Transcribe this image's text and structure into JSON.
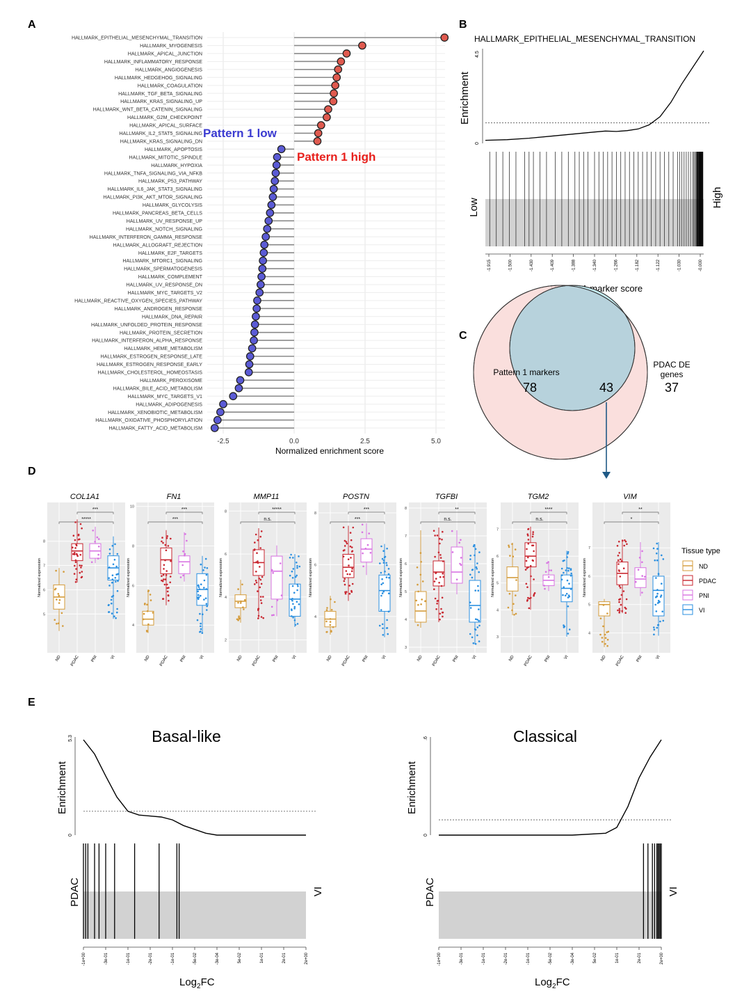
{
  "panel_labels": {
    "a": "A",
    "b": "B",
    "c": "C",
    "d": "D",
    "e": "E"
  },
  "chart_data": [
    {
      "id": "A",
      "type": "lollipop",
      "xlabel": "Normalized enrichment score",
      "xticks": [
        -2.5,
        0.0,
        2.5,
        5.0
      ],
      "xtick_labels": [
        "-2.5",
        "0.0",
        "2.5",
        "5.0"
      ],
      "xlim": [
        -2.75,
        5.4
      ],
      "colors": {
        "positive": "#e05a4f",
        "negative": "#5b5bd6"
      },
      "annotations": [
        {
          "text": "Pattern 1 low",
          "color": "#3b3bd1"
        },
        {
          "text": "Pattern 1 high",
          "color": "#e8201c"
        }
      ],
      "categories": [
        "HALLMARK_EPITHELIAL_MESENCHYMAL_TRANSITION",
        "HALLMARK_MYOGENESIS",
        "HALLMARK_APICAL_JUNCTION",
        "HALLMARK_INFLAMMATORY_RESPONSE",
        "HALLMARK_ANGIOGENESIS",
        "HALLMARK_HEDGEHOG_SIGNALING",
        "HALLMARK_COAGULATION",
        "HALLMARK_TGF_BETA_SIGNALING",
        "HALLMARK_KRAS_SIGNALING_UP",
        "HALLMARK_WNT_BETA_CATENIN_SIGNALING",
        "HALLMARK_G2M_CHECKPOINT",
        "HALLMARK_APICAL_SURFACE",
        "HALLMARK_IL2_STAT5_SIGNALING",
        "HALLMARK_KRAS_SIGNALING_DN",
        "HALLMARK_APOPTOSIS",
        "HALLMARK_MITOTIC_SPINDLE",
        "HALLMARK_HYPOXIA",
        "HALLMARK_TNFA_SIGNALING_VIA_NFKB",
        "HALLMARK_P53_PATHWAY",
        "HALLMARK_IL6_JAK_STAT3_SIGNALING",
        "HALLMARK_PI3K_AKT_MTOR_SIGNALING",
        "HALLMARK_GLYCOLYSIS",
        "HALLMARK_PANCREAS_BETA_CELLS",
        "HALLMARK_UV_RESPONSE_UP",
        "HALLMARK_NOTCH_SIGNALING",
        "HALLMARK_INTERFERON_GAMMA_RESPONSE",
        "HALLMARK_ALLOGRAFT_REJECTION",
        "HALLMARK_E2F_TARGETS",
        "HALLMARK_MTORC1_SIGNALING",
        "HALLMARK_SPERMATOGENESIS",
        "HALLMARK_COMPLEMENT",
        "HALLMARK_UV_RESPONSE_DN",
        "HALLMARK_MYC_TARGETS_V2",
        "HALLMARK_REACTIVE_OXYGEN_SPECIES_PATHWAY",
        "HALLMARK_ANDROGEN_RESPONSE",
        "HALLMARK_DNA_REPAIR",
        "HALLMARK_UNFOLDED_PROTEIN_RESPONSE",
        "HALLMARK_PROTEIN_SECRETION",
        "HALLMARK_INTERFERON_ALPHA_RESPONSE",
        "HALLMARK_HEME_METABOLISM",
        "HALLMARK_ESTROGEN_RESPONSE_LATE",
        "HALLMARK_ESTROGEN_RESPONSE_EARLY",
        "HALLMARK_CHOLESTEROL_HOMEOSTASIS",
        "HALLMARK_PEROXISOME",
        "HALLMARK_BILE_ACID_METABOLISM",
        "HALLMARK_MYC_TARGETS_V1",
        "HALLMARK_ADIPOGENESIS",
        "HALLMARK_XENOBIOTIC_METABOLISM",
        "HALLMARK_OXIDATIVE_PHOSPHORYLATION",
        "HALLMARK_FATTY_ACID_METABOLISM"
      ],
      "values": [
        5.3,
        2.4,
        1.85,
        1.65,
        1.55,
        1.5,
        1.45,
        1.4,
        1.38,
        1.2,
        1.15,
        0.95,
        0.85,
        0.82,
        -0.45,
        -0.6,
        -0.62,
        -0.65,
        -0.68,
        -0.72,
        -0.75,
        -0.8,
        -0.85,
        -0.9,
        -0.95,
        -1.0,
        -1.05,
        -1.07,
        -1.1,
        -1.12,
        -1.15,
        -1.18,
        -1.22,
        -1.3,
        -1.32,
        -1.35,
        -1.38,
        -1.4,
        -1.42,
        -1.48,
        -1.55,
        -1.58,
        -1.6,
        -1.9,
        -1.95,
        -2.15,
        -2.5,
        -2.6,
        -2.7,
        -2.8
      ]
    },
    {
      "id": "B",
      "type": "gsea_running_enrichment",
      "title": "HALLMARK_EPITHELIAL_MESENCHYMAL_TRANSITION",
      "ylabel": "Enrichment",
      "ytick_labels": [
        "0",
        "4.5"
      ],
      "ylim": [
        0,
        4.5
      ],
      "baseline": 1.0,
      "curve_x": [
        0,
        0.1,
        0.2,
        0.3,
        0.4,
        0.5,
        0.55,
        0.6,
        0.65,
        0.7,
        0.75,
        0.8,
        0.85,
        0.9,
        0.95,
        1.0
      ],
      "curve_y": [
        0.15,
        0.18,
        0.25,
        0.35,
        0.45,
        0.55,
        0.6,
        0.58,
        0.62,
        0.7,
        0.9,
        1.3,
        2.0,
        2.9,
        3.7,
        4.5
      ],
      "hits_x": [
        0.02,
        0.05,
        0.08,
        0.11,
        0.14,
        0.18,
        0.2,
        0.22,
        0.25,
        0.28,
        0.32,
        0.35,
        0.38,
        0.41,
        0.43,
        0.45,
        0.47,
        0.5,
        0.52,
        0.54,
        0.56,
        0.58,
        0.6,
        0.62,
        0.64,
        0.66,
        0.68,
        0.7,
        0.72,
        0.74,
        0.76,
        0.78,
        0.8,
        0.82,
        0.84,
        0.86,
        0.88,
        0.89,
        0.9,
        0.91,
        0.92,
        0.93,
        0.94,
        0.95,
        0.955,
        0.96,
        0.965,
        0.97,
        0.975,
        0.98,
        0.985,
        0.99,
        0.995
      ],
      "left_label": "Low",
      "right_label": "High",
      "xlabel": "Pattern 1 marker score",
      "xtick_labels": [
        "-1.915",
        "-1.500",
        "-1.430",
        "-1.409",
        "-1.388",
        "-1.340",
        "-1.266",
        "-1.182",
        "-1.122",
        "-1.030",
        "-0.000"
      ]
    },
    {
      "id": "C",
      "type": "venn",
      "sets": [
        {
          "name": "Pattern 1 markers",
          "only": "78",
          "color": "#fadcd9"
        },
        {
          "name_lines": [
            "PDAC DE",
            "genes"
          ],
          "only": "37",
          "color": "#c8f1f8"
        }
      ],
      "intersection": "43"
    },
    {
      "id": "D",
      "type": "boxplot_grid",
      "ylabel": "Normalized expression",
      "groups": [
        "ND",
        "PDAC",
        "PNI",
        "VI"
      ],
      "group_colors": {
        "ND": "#d49b3a",
        "PDAC": "#c8262f",
        "PNI": "#d873e2",
        "VI": "#2a8fe0"
      },
      "legend_title": "Tissue type",
      "genes": [
        {
          "gene": "COL1A1",
          "yticks": [
            5,
            6,
            7,
            8
          ],
          "ylim": [
            3.4,
            9.6
          ],
          "sig": [
            "***",
            "*****"
          ],
          "boxes": [
            {
              "q1": 5.2,
              "med": 5.7,
              "q3": 6.2,
              "lo": 4.3,
              "hi": 6.9
            },
            {
              "q1": 7.2,
              "med": 7.6,
              "q3": 7.9,
              "lo": 6.3,
              "hi": 8.9
            },
            {
              "q1": 7.3,
              "med": 7.6,
              "q3": 7.9,
              "lo": 7.1,
              "hi": 8.6
            },
            {
              "q1": 6.4,
              "med": 6.9,
              "q3": 7.4,
              "lo": 4.8,
              "hi": 8.2
            }
          ]
        },
        {
          "gene": "FN1",
          "yticks": [
            4,
            6,
            8,
            10
          ],
          "ylim": [
            2.6,
            10.2
          ],
          "sig": [
            "***",
            "***"
          ],
          "boxes": [
            {
              "q1": 4.0,
              "med": 4.3,
              "q3": 4.7,
              "lo": 3.6,
              "hi": 5.8
            },
            {
              "q1": 6.6,
              "med": 7.3,
              "q3": 7.9,
              "lo": 5.0,
              "hi": 8.8
            },
            {
              "q1": 6.6,
              "med": 7.2,
              "q3": 7.5,
              "lo": 6.2,
              "hi": 8.7
            },
            {
              "q1": 5.0,
              "med": 5.8,
              "q3": 6.6,
              "lo": 3.6,
              "hi": 7.5
            }
          ]
        },
        {
          "gene": "MMP11",
          "yticks": [
            2,
            4,
            6,
            8
          ],
          "ylim": [
            1.4,
            8.4
          ],
          "sig": [
            "*****",
            "n.s."
          ],
          "boxes": [
            {
              "q1": 3.5,
              "med": 3.8,
              "q3": 4.1,
              "lo": 2.8,
              "hi": 4.8
            },
            {
              "q1": 5.0,
              "med": 5.6,
              "q3": 6.2,
              "lo": 3.0,
              "hi": 7.2
            },
            {
              "q1": 3.9,
              "med": 5.2,
              "q3": 5.9,
              "lo": 3.1,
              "hi": 6.4
            },
            {
              "q1": 3.1,
              "med": 3.9,
              "q3": 4.6,
              "lo": 2.6,
              "hi": 6.0
            }
          ]
        },
        {
          "gene": "POSTN",
          "yticks": [
            4,
            6,
            8
          ],
          "ylim": [
            2.6,
            8.4
          ],
          "sig": [
            "***",
            "***"
          ],
          "boxes": [
            {
              "q1": 3.6,
              "med": 3.9,
              "q3": 4.2,
              "lo": 3.3,
              "hi": 4.8
            },
            {
              "q1": 5.5,
              "med": 5.9,
              "q3": 6.4,
              "lo": 4.6,
              "hi": 7.5
            },
            {
              "q1": 6.1,
              "med": 6.6,
              "q3": 7.0,
              "lo": 5.6,
              "hi": 7.6
            },
            {
              "q1": 4.2,
              "med": 5.0,
              "q3": 5.6,
              "lo": 3.2,
              "hi": 6.8
            }
          ]
        },
        {
          "gene": "TGFBI",
          "yticks": [
            3,
            4,
            5,
            6,
            7,
            8
          ],
          "ylim": [
            2.8,
            8.2
          ],
          "sig": [
            "**",
            "n.s."
          ],
          "boxes": [
            {
              "q1": 3.9,
              "med": 4.3,
              "q3": 5.0,
              "lo": 3.7,
              "hi": 7.2
            },
            {
              "q1": 5.2,
              "med": 5.7,
              "q3": 6.1,
              "lo": 3.9,
              "hi": 7.3
            },
            {
              "q1": 5.3,
              "med": 5.7,
              "q3": 6.6,
              "lo": 4.9,
              "hi": 7.2
            },
            {
              "q1": 3.9,
              "med": 4.5,
              "q3": 5.4,
              "lo": 3.1,
              "hi": 6.7
            }
          ]
        },
        {
          "gene": "TGM2",
          "yticks": [
            3,
            4,
            5,
            6,
            7
          ],
          "ylim": [
            2.4,
            8.0
          ],
          "sig": [
            "****",
            "n.s."
          ],
          "boxes": [
            {
              "q1": 4.7,
              "med": 5.2,
              "q3": 5.6,
              "lo": 3.8,
              "hi": 6.5
            },
            {
              "q1": 5.6,
              "med": 6.0,
              "q3": 6.5,
              "lo": 4.0,
              "hi": 7.1
            },
            {
              "q1": 4.9,
              "med": 5.1,
              "q3": 5.3,
              "lo": 4.7,
              "hi": 5.8
            },
            {
              "q1": 4.3,
              "med": 4.8,
              "q3": 5.3,
              "lo": 3.0,
              "hi": 6.2
            }
          ]
        },
        {
          "gene": "VIM",
          "yticks": [
            4,
            5,
            6,
            7
          ],
          "ylim": [
            3.3,
            8.6
          ],
          "sig": [
            "**",
            "*"
          ],
          "boxes": [
            {
              "q1": 4.6,
              "med": 5.0,
              "q3": 5.1,
              "lo": 3.5,
              "hi": 5.2
            },
            {
              "q1": 5.7,
              "med": 6.1,
              "q3": 6.5,
              "lo": 4.7,
              "hi": 7.3
            },
            {
              "q1": 5.6,
              "med": 5.9,
              "q3": 6.3,
              "lo": 5.3,
              "hi": 7.2
            },
            {
              "q1": 4.6,
              "med": 5.5,
              "q3": 6.0,
              "lo": 3.9,
              "hi": 7.2
            }
          ]
        }
      ]
    },
    {
      "id": "E",
      "type": "gsea_pair",
      "ylabel": "Enrichment",
      "xlabel_main": "Log",
      "xlabel_sub": "2",
      "xlabel_tail": "FC",
      "left_label": "PDAC",
      "right_label": "VI",
      "xtick_labels": [
        "-1e+00",
        "-3e-01",
        "-1e-01",
        "-2e-01",
        "-1e-01",
        "-5e-02",
        "-3e-04",
        "5e-02",
        "1e-01",
        "2e-01",
        "2e+00"
      ],
      "panels": [
        {
          "title": "Basal-like",
          "ymax_label": "5.3",
          "ymin_label": "0",
          "baseline": 0.25,
          "curve_x": [
            0,
            0.05,
            0.1,
            0.15,
            0.2,
            0.25,
            0.3,
            0.35,
            0.4,
            0.45,
            0.5,
            0.55,
            0.6,
            0.7,
            0.8,
            0.9,
            1.0
          ],
          "curve_y": [
            1.0,
            0.85,
            0.62,
            0.4,
            0.25,
            0.21,
            0.2,
            0.19,
            0.16,
            0.1,
            0.06,
            0.02,
            0.0,
            0.0,
            0.0,
            0.0,
            0.0
          ],
          "hits_x": [
            0.0,
            0.01,
            0.02,
            0.05,
            0.07,
            0.1,
            0.14,
            0.23,
            0.34,
            0.42,
            0.43
          ]
        },
        {
          "title": "Classical",
          "ymax_label": ".6",
          "ymin_label": "0",
          "baseline": 0.16,
          "curve_x": [
            0,
            0.2,
            0.4,
            0.6,
            0.75,
            0.8,
            0.85,
            0.9,
            0.95,
            1.0
          ],
          "curve_y": [
            0.0,
            0.0,
            0.0,
            0.0,
            0.02,
            0.08,
            0.3,
            0.6,
            0.82,
            1.0
          ],
          "hits_x": [
            0.92,
            0.94,
            0.96,
            0.97,
            0.98,
            0.985,
            0.99,
            0.995,
            1.0
          ]
        }
      ]
    }
  ]
}
